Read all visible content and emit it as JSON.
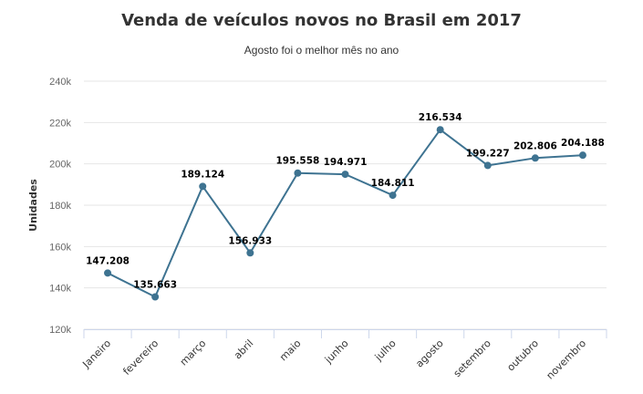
{
  "chart_data": {
    "type": "line",
    "title": "Venda de veículos novos no Brasil em 2017",
    "subtitle": "Agosto foi o melhor mês no ano",
    "xlabel": "",
    "ylabel": "Unidades",
    "categories": [
      "Janeiro",
      "fevereiro",
      "março",
      "abril",
      "maio",
      "junho",
      "julho",
      "agosto",
      "setembro",
      "outubro",
      "novembro"
    ],
    "series": [
      {
        "values": [
          147208,
          135663,
          189124,
          156933,
          195558,
          194971,
          184811,
          216534,
          199227,
          202806,
          204188
        ],
        "data_labels": [
          "147.208",
          "135.663",
          "189.124",
          "156.933",
          "195.558",
          "194.971",
          "184.811",
          "216.534",
          "199.227",
          "202.806",
          "204.188"
        ]
      }
    ],
    "ylim": [
      120000,
      240000
    ],
    "yticks": [
      120000,
      140000,
      160000,
      180000,
      200000,
      220000,
      240000
    ],
    "ytick_labels": [
      "120k",
      "140k",
      "160k",
      "180k",
      "200k",
      "220k",
      "240k"
    ],
    "grid": true,
    "legend": "none",
    "colors": {
      "line": "#3e7391",
      "grid": "#e6e6e6",
      "axis": "#ccd6eb"
    }
  }
}
